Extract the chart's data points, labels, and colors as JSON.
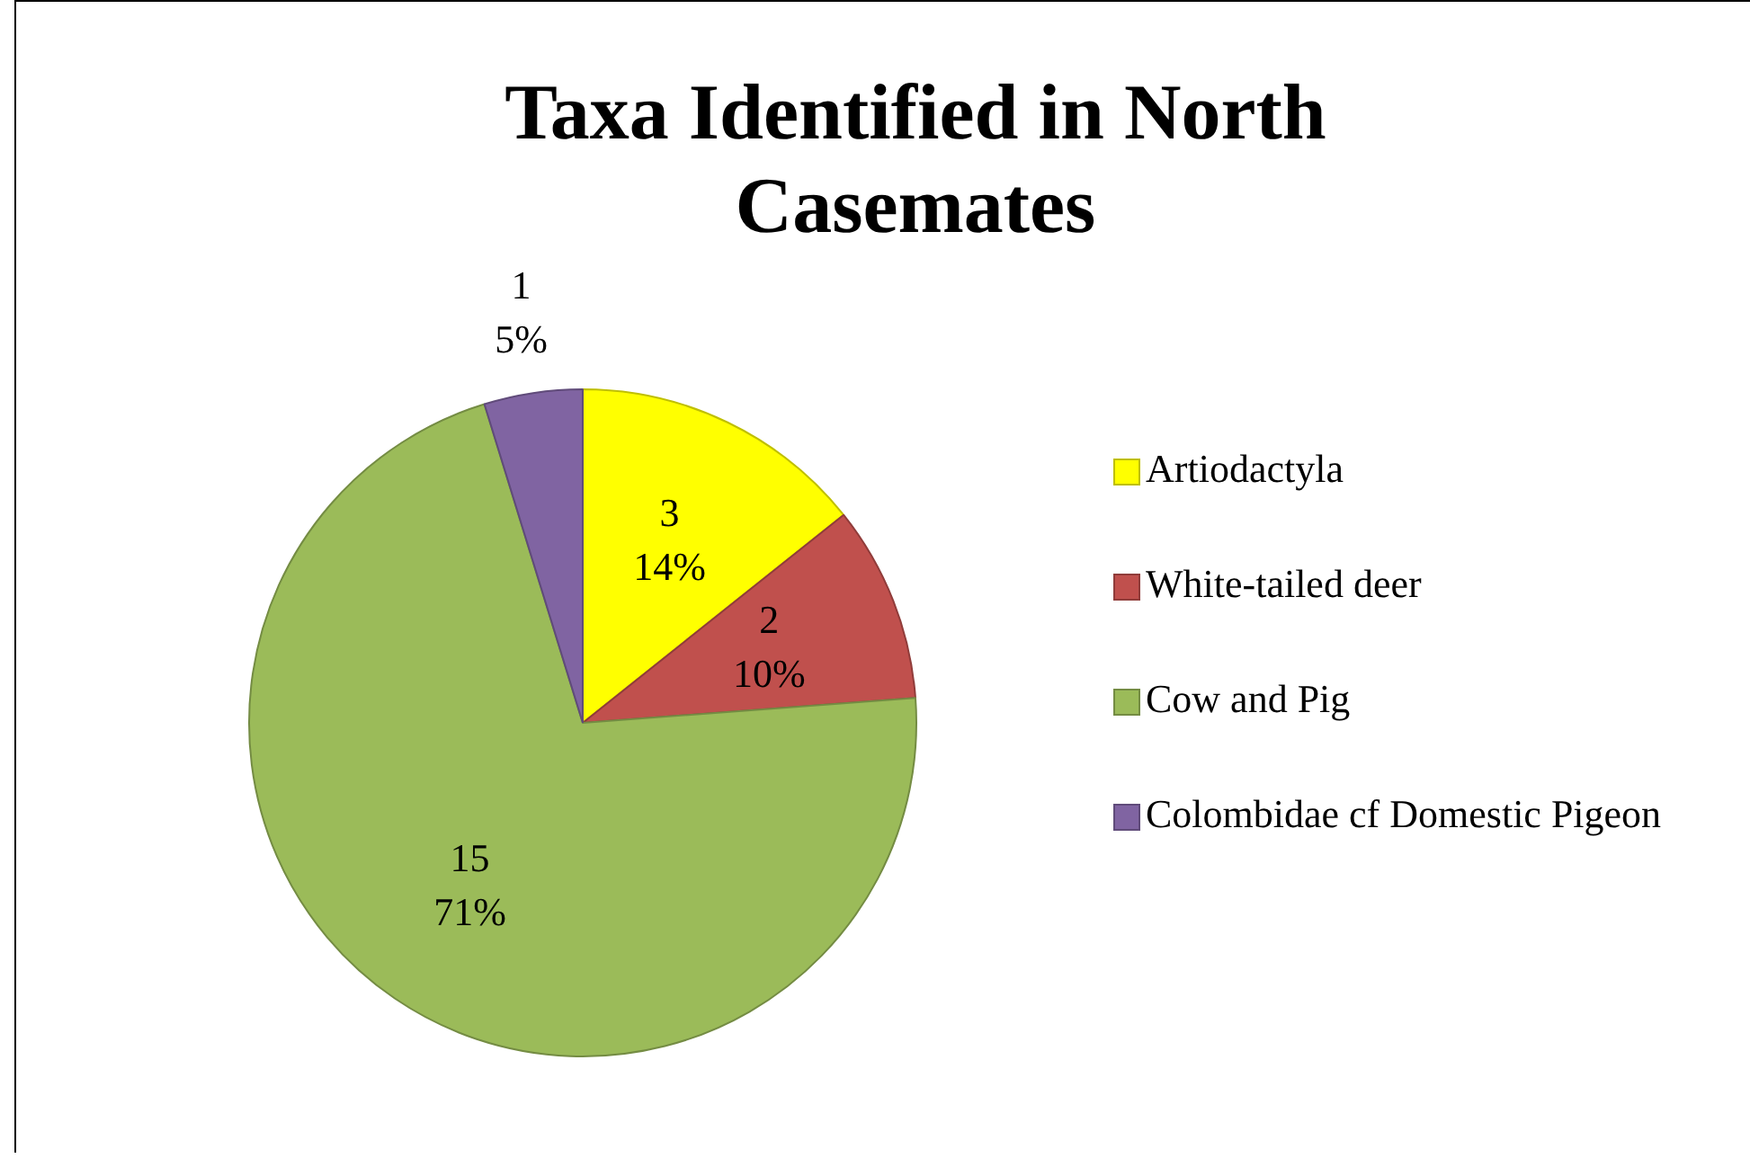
{
  "chart_data": {
    "type": "pie",
    "title": "Taxa Identified in North Casemates",
    "categories": [
      "Artiodactyla",
      "White-tailed deer",
      "Cow and Pig",
      "Colombidae cf Domestic Pigeon"
    ],
    "values": [
      3,
      2,
      15,
      1
    ],
    "colors": [
      "#ffff00",
      "#c0504d",
      "#9bbb59",
      "#8064a2"
    ],
    "value_labels": [
      "3\n14%",
      "2\n10%",
      "15\n71%",
      "1\n5%"
    ],
    "legend": "right"
  }
}
